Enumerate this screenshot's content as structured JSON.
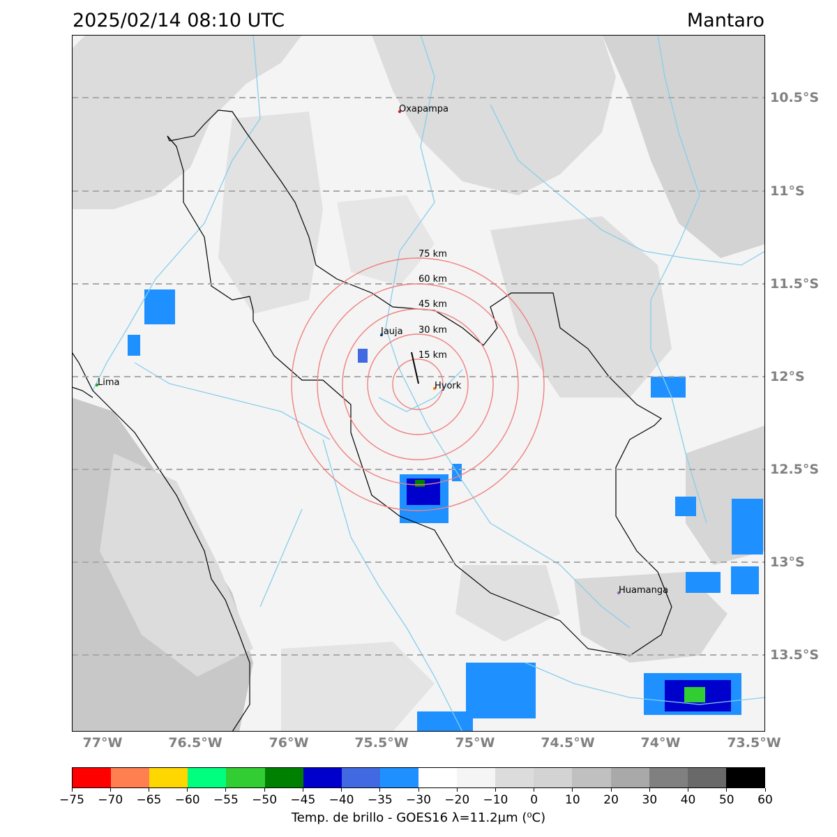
{
  "header": {
    "datetime": "2025/02/14 08:10 UTC",
    "basin": "Mantaro"
  },
  "map": {
    "background_color": "#f4f4f4",
    "lat_labels": [
      "10.5°S",
      "11°S",
      "11.5°S",
      "12°S",
      "12.5°S",
      "13°S",
      "13.5°S"
    ],
    "lon_labels": [
      "77°W",
      "76.5°W",
      "76°W",
      "75.5°W",
      "75°W",
      "74.5°W",
      "74°W",
      "73.5°W"
    ],
    "cities": [
      {
        "name": "Oxapampa",
        "color": "#d62728"
      },
      {
        "name": "Jauja",
        "color": "#1f77b4"
      },
      {
        "name": "Hyork",
        "color": "#ff7f0e"
      },
      {
        "name": "Lima",
        "color": "#2ca02c"
      },
      {
        "name": "Huamanga",
        "color": "#9467bd"
      }
    ],
    "range_rings": [
      "15 km",
      "30 km",
      "45 km",
      "60 km",
      "75 km"
    ],
    "ring_color": "#f08080",
    "river_color": "#87ceeb",
    "boundary_color": "#000000"
  },
  "colorbar": {
    "title": "Temp. de brillo - GOES16 λ=11.2μm (⁰C)",
    "tick_labels": [
      "−75",
      "−70",
      "−65",
      "−60",
      "−55",
      "−50",
      "−45",
      "−40",
      "−35",
      "−30",
      "−20",
      "−10",
      "0",
      "10",
      "20",
      "30",
      "40",
      "50",
      "60"
    ],
    "colors": [
      "#ff0000",
      "#ff7f50",
      "#ffd700",
      "#00ff7f",
      "#32cd32",
      "#008000",
      "#0000cd",
      "#4169e1",
      "#1e90ff",
      "#ffffff",
      "#f5f5f5",
      "#dcdcdc",
      "#d3d3d3",
      "#c0c0c0",
      "#a9a9a9",
      "#808080",
      "#696969",
      "#000000"
    ]
  }
}
